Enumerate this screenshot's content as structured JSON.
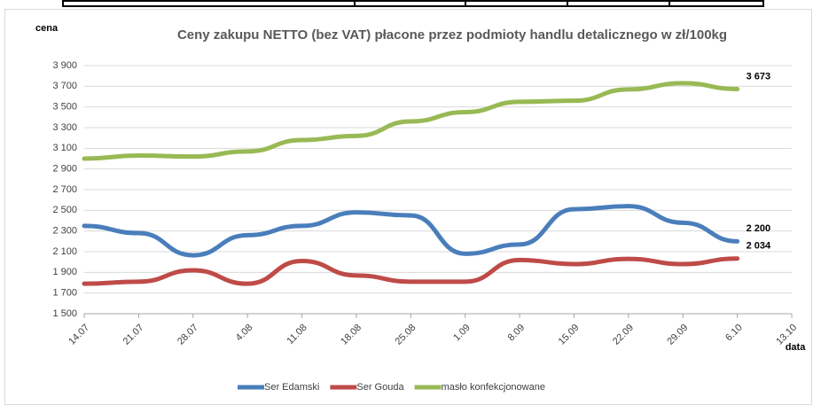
{
  "chart_data": {
    "type": "line",
    "title": "Ceny zakupu NETTO (bez VAT) płacone przez podmioty handlu detalicznego w zł/100kg",
    "y_label": "cena",
    "x_label": "data",
    "categories": [
      "14.07",
      "21.07",
      "28.07",
      "4.08",
      "11.08",
      "18.08",
      "25.08",
      "1.09",
      "8.09",
      "15.09",
      "22.09",
      "29.09",
      "6.10",
      "13.10"
    ],
    "series": [
      {
        "name": "Ser Edamski",
        "color": "#4a7ebb",
        "values": [
          2350,
          2280,
          2065,
          2260,
          2350,
          2480,
          2450,
          2080,
          2170,
          2510,
          2540,
          2380,
          2200,
          null
        ],
        "value_labels": [
          null,
          null,
          null,
          null,
          null,
          null,
          null,
          null,
          null,
          null,
          null,
          null,
          "2 200",
          null
        ]
      },
      {
        "name": "Ser Gouda",
        "color": "#be4b48",
        "values": [
          1790,
          1810,
          1920,
          1790,
          2010,
          1870,
          1810,
          1810,
          2020,
          1980,
          2030,
          1980,
          2034,
          null
        ],
        "value_labels": [
          null,
          null,
          null,
          null,
          null,
          null,
          null,
          null,
          null,
          null,
          null,
          null,
          "2 034",
          null
        ]
      },
      {
        "name": "masło konfekcjonowane",
        "color": "#98b954",
        "values": [
          3000,
          3030,
          3020,
          3070,
          3180,
          3220,
          3360,
          3450,
          3550,
          3560,
          3670,
          3730,
          3673,
          null
        ],
        "value_labels": [
          null,
          null,
          null,
          null,
          null,
          null,
          null,
          null,
          null,
          null,
          null,
          null,
          "3 673",
          null
        ]
      }
    ],
    "ylim": [
      1500,
      3900
    ],
    "yticks": [
      {
        "value": 1500,
        "label": "1 500"
      },
      {
        "value": 1700,
        "label": "1 700"
      },
      {
        "value": 1900,
        "label": "1 900"
      },
      {
        "value": 2100,
        "label": "2 100"
      },
      {
        "value": 2300,
        "label": "2 300"
      },
      {
        "value": 2500,
        "label": "2 500"
      },
      {
        "value": 2700,
        "label": "2 700"
      },
      {
        "value": 2900,
        "label": "2 900"
      },
      {
        "value": 3100,
        "label": "3 100"
      },
      {
        "value": 3300,
        "label": "3 300"
      },
      {
        "value": 3500,
        "label": "3 500"
      },
      {
        "value": 3700,
        "label": "3 700"
      },
      {
        "value": 3900,
        "label": "3 900"
      }
    ],
    "grid": true,
    "legend": "bottom"
  }
}
